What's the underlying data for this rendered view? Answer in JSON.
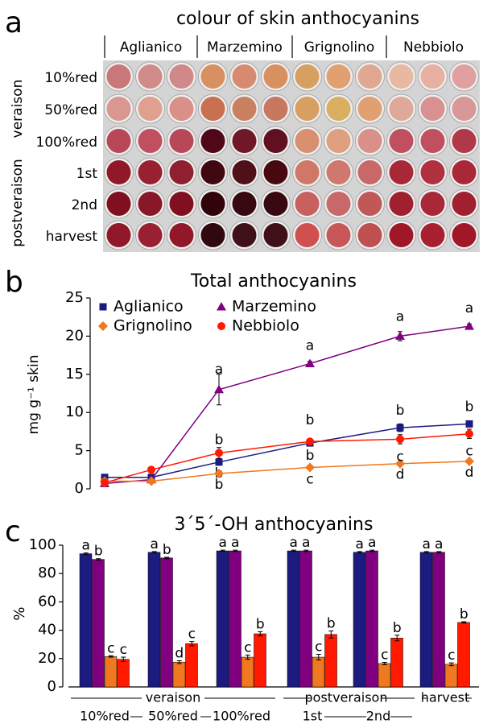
{
  "photo_panel": {
    "label": "a",
    "title": "colour of skin anthocyanins",
    "varieties": [
      "Aglianico",
      "Marzemino",
      "Grignolino",
      "Nebbiolo"
    ],
    "stages": [
      "10%red",
      "50%red",
      "100%red",
      "1st",
      "2nd",
      "harvest"
    ],
    "stage_groups": [
      "veraison",
      "postveraison"
    ]
  },
  "chart_data": [
    {
      "type": "line",
      "label": "b",
      "title": "Total anthocyanins",
      "y_label": "mg g⁻¹ skin",
      "categories": [
        null,
        null,
        null,
        null,
        null,
        null
      ],
      "ylim": [
        0,
        25
      ],
      "yticks": [
        0,
        5,
        10,
        15,
        20,
        25
      ],
      "legend": "upper left",
      "series": [
        {
          "name": "Aglianico",
          "color": "#1c1c80",
          "marker": "square",
          "values": [
            1.5,
            1.5,
            3.5,
            6.0,
            8.0,
            8.5
          ],
          "errors": [
            0.1,
            0.1,
            0.4,
            0.3,
            0.5,
            0.3
          ],
          "letters": [
            null,
            null,
            "b",
            "b",
            "b",
            "b"
          ]
        },
        {
          "name": "Marzemino",
          "color": "#800080",
          "marker": "triangle",
          "values": [
            0.7,
            1.2,
            13.0,
            16.4,
            20.0,
            21.3
          ],
          "errors": [
            0.1,
            0.1,
            2.0,
            0.3,
            0.6,
            0.3
          ],
          "letters": [
            null,
            null,
            "a",
            "a",
            "a",
            "a"
          ]
        },
        {
          "name": "Grignolino",
          "color": "#f07820",
          "marker": "diamond",
          "values": [
            1.0,
            1.0,
            2.0,
            2.8,
            3.3,
            3.6
          ],
          "errors": [
            0.05,
            0.1,
            0.1,
            0.1,
            0.1,
            0.1
          ],
          "letters": [
            null,
            null,
            "b",
            "c",
            "d",
            "d"
          ]
        },
        {
          "name": "Nebbiolo",
          "color": "#ff1a00",
          "marker": "circle",
          "values": [
            0.8,
            2.5,
            4.7,
            6.2,
            6.5,
            7.2
          ],
          "errors": [
            0.1,
            0.2,
            0.7,
            0.3,
            0.6,
            0.6
          ],
          "letters": [
            null,
            null,
            "b",
            "b",
            "c",
            "c"
          ]
        }
      ]
    },
    {
      "type": "bar",
      "label": "c",
      "title": "3´5´-OH anthocyanins",
      "y_label": "%",
      "categories": [
        "10%red",
        "50%red",
        "100%red",
        "1st",
        "2nd",
        "harvest"
      ],
      "groups": [
        "veraison",
        "postveraison"
      ],
      "ylim": [
        0,
        100
      ],
      "yticks": [
        0,
        20,
        40,
        60,
        80,
        100
      ],
      "series": [
        {
          "color": "#1c1c80",
          "values": [
            94,
            95,
            96,
            96,
            95,
            95
          ],
          "errors": [
            0.5,
            0.5,
            0.5,
            0.5,
            0.5,
            0.5
          ],
          "letters": [
            "a",
            "a",
            "a",
            "a",
            "a",
            "a"
          ]
        },
        {
          "color": "#800080",
          "values": [
            90,
            91,
            96,
            96,
            96,
            95
          ],
          "errors": [
            0.5,
            0.5,
            0.5,
            0.5,
            0.5,
            0.5
          ],
          "letters": [
            "b",
            "b",
            "a",
            "a",
            "a",
            "a"
          ]
        },
        {
          "color": "#f07820",
          "values": [
            21.5,
            17.5,
            21,
            21,
            16.5,
            16
          ],
          "errors": [
            0.5,
            1,
            1.5,
            2,
            0.8,
            1
          ],
          "letters": [
            "c",
            "d",
            "c",
            "c",
            "c",
            "c"
          ]
        },
        {
          "color": "#ff1a00",
          "values": [
            19.5,
            30.5,
            37.5,
            37,
            34.5,
            45.5
          ],
          "errors": [
            1.5,
            1.5,
            1.5,
            2.5,
            2,
            0.5
          ],
          "letters": [
            "c",
            "c",
            "b",
            "b",
            "b",
            "b"
          ]
        }
      ]
    }
  ]
}
